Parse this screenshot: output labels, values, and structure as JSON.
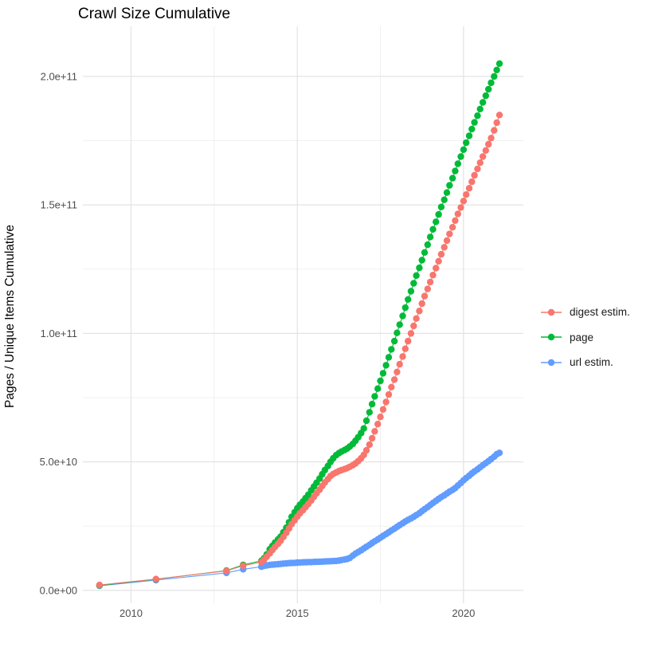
{
  "title": "Crawl Size Cumulative",
  "y_axis_title": "Pages / Unique Items Cumulative",
  "colors": {
    "digest": "#F8766D",
    "page": "#00BA38",
    "url": "#619CFF",
    "grid_major": "#E3E3E3",
    "grid_minor": "#F0F0F0",
    "tick_text": "#4D4D4D",
    "title_text": "#000000",
    "background": "#FFFFFF"
  },
  "legend": {
    "position": "right",
    "items": [
      "digest estim.",
      "page",
      "url estim."
    ]
  },
  "chart_data": {
    "type": "scatter",
    "title": "Crawl Size Cumulative",
    "xlabel": "",
    "ylabel": "Pages / Unique Items Cumulative",
    "value_unit": "counts in billions (1e9); axis shown in scientific notation",
    "x_range": [
      2008.55,
      2021.8
    ],
    "y_range_e9": [
      -5,
      219.5
    ],
    "grid": true,
    "x_ticks": {
      "major_values": [
        2010,
        2015,
        2020
      ],
      "minor_values": [
        2012.5,
        2017.5
      ],
      "labels": [
        "2010",
        "2015",
        "2020"
      ]
    },
    "y_ticks": {
      "major_values_e9": [
        0,
        50,
        100,
        150,
        200
      ],
      "minor_values_e9": [
        25,
        75,
        125,
        175
      ],
      "labels": [
        "0.0e+00",
        "5.0e+10",
        "1.0e+11",
        "1.5e+11",
        "2.0e+11"
      ]
    },
    "x": [
      2009.05,
      2010.75,
      2012.87,
      2013.37,
      2013.92,
      2014.0,
      2014.08,
      2014.17,
      2014.25,
      2014.33,
      2014.42,
      2014.5,
      2014.58,
      2014.67,
      2014.75,
      2014.83,
      2014.92,
      2015.0,
      2015.08,
      2015.17,
      2015.25,
      2015.33,
      2015.42,
      2015.5,
      2015.58,
      2015.67,
      2015.75,
      2015.83,
      2015.92,
      2016.0,
      2016.08,
      2016.17,
      2016.25,
      2016.33,
      2016.42,
      2016.5,
      2016.58,
      2016.67,
      2016.75,
      2016.83,
      2016.92,
      2017.0,
      2017.08,
      2017.17,
      2017.25,
      2017.33,
      2017.42,
      2017.5,
      2017.58,
      2017.67,
      2017.75,
      2017.83,
      2017.92,
      2018.0,
      2018.08,
      2018.17,
      2018.25,
      2018.33,
      2018.42,
      2018.5,
      2018.58,
      2018.67,
      2018.75,
      2018.83,
      2018.92,
      2019.0,
      2019.08,
      2019.17,
      2019.25,
      2019.33,
      2019.42,
      2019.5,
      2019.58,
      2019.67,
      2019.75,
      2019.83,
      2019.92,
      2020.0,
      2020.08,
      2020.17,
      2020.25,
      2020.33,
      2020.42,
      2020.5,
      2020.58,
      2020.67,
      2020.75,
      2020.83,
      2020.92,
      2021.0,
      2021.08
    ],
    "series": [
      {
        "name": "digest estim.",
        "color_key": "digest",
        "values_e9": [
          2.1,
          4.4,
          7.6,
          9.6,
          11.0,
          11.9,
          13.1,
          14.4,
          15.7,
          16.9,
          18.1,
          19.3,
          20.8,
          22.4,
          24.1,
          25.8,
          27.3,
          28.7,
          30.0,
          31.2,
          32.4,
          33.6,
          35.0,
          36.4,
          37.8,
          39.2,
          40.6,
          42.0,
          43.3,
          44.5,
          45.3,
          45.9,
          46.4,
          46.8,
          47.2,
          47.6,
          48.1,
          48.7,
          49.4,
          50.3,
          51.4,
          52.7,
          54.5,
          56.7,
          59.2,
          61.9,
          64.7,
          67.5,
          70.4,
          73.3,
          76.2,
          79.1,
          82.0,
          85.0,
          88.0,
          91.0,
          94.0,
          97.0,
          100.0,
          102.9,
          105.8,
          108.7,
          111.6,
          114.5,
          117.3,
          120.0,
          122.7,
          125.4,
          128.1,
          130.8,
          133.5,
          136.1,
          138.7,
          141.3,
          143.9,
          146.5,
          149.0,
          151.5,
          154.0,
          156.5,
          159.0,
          161.5,
          164.0,
          166.4,
          168.8,
          171.2,
          173.6,
          176.0,
          179.0,
          182.0,
          185.0
        ]
      },
      {
        "name": "page",
        "color_key": "page",
        "values_e9": [
          1.9,
          4.3,
          7.7,
          9.9,
          11.5,
          12.5,
          14.0,
          16.0,
          17.3,
          18.6,
          19.8,
          20.9,
          22.6,
          24.4,
          26.5,
          28.6,
          30.4,
          32.0,
          33.3,
          34.6,
          35.9,
          37.2,
          38.9,
          40.4,
          41.9,
          43.5,
          45.2,
          46.8,
          48.4,
          50.0,
          51.4,
          52.6,
          53.4,
          54.0,
          54.6,
          55.2,
          56.0,
          57.0,
          58.2,
          59.6,
          61.2,
          63.0,
          66.0,
          69.3,
          72.5,
          75.5,
          78.5,
          81.5,
          84.5,
          87.6,
          90.7,
          93.8,
          97.0,
          100.2,
          103.4,
          106.8,
          110.0,
          113.2,
          116.4,
          119.5,
          122.5,
          125.5,
          128.5,
          131.5,
          134.5,
          137.5,
          140.5,
          143.4,
          146.3,
          149.2,
          152.0,
          154.8,
          157.6,
          160.4,
          163.2,
          166.0,
          168.8,
          171.5,
          174.2,
          176.9,
          179.5,
          182.1,
          184.7,
          187.3,
          189.9,
          192.5,
          195.0,
          197.5,
          200.0,
          202.5,
          205.0
        ]
      },
      {
        "name": "url estim.",
        "color_key": "url",
        "values_e9": [
          1.8,
          4.0,
          6.8,
          8.2,
          9.2,
          9.5,
          9.7,
          9.9,
          10.0,
          10.1,
          10.2,
          10.3,
          10.4,
          10.5,
          10.6,
          10.65,
          10.7,
          10.8,
          10.85,
          10.9,
          10.95,
          11.0,
          11.0,
          11.05,
          11.1,
          11.15,
          11.2,
          11.25,
          11.3,
          11.35,
          11.4,
          11.45,
          11.6,
          11.8,
          12.0,
          12.2,
          12.6,
          13.5,
          14.3,
          14.9,
          15.6,
          16.3,
          17.0,
          17.7,
          18.4,
          19.1,
          19.8,
          20.5,
          21.2,
          21.9,
          22.6,
          23.3,
          24.0,
          24.7,
          25.4,
          26.1,
          26.8,
          27.4,
          28.0,
          28.6,
          29.3,
          30.0,
          30.8,
          31.6,
          32.4,
          33.2,
          34.0,
          34.8,
          35.6,
          36.3,
          37.0,
          37.7,
          38.4,
          39.1,
          39.8,
          40.8,
          41.8,
          42.8,
          43.7,
          44.6,
          45.5,
          46.3,
          47.1,
          47.9,
          48.7,
          49.5,
          50.3,
          51.1,
          52.0,
          53.0,
          53.5
        ]
      }
    ]
  }
}
